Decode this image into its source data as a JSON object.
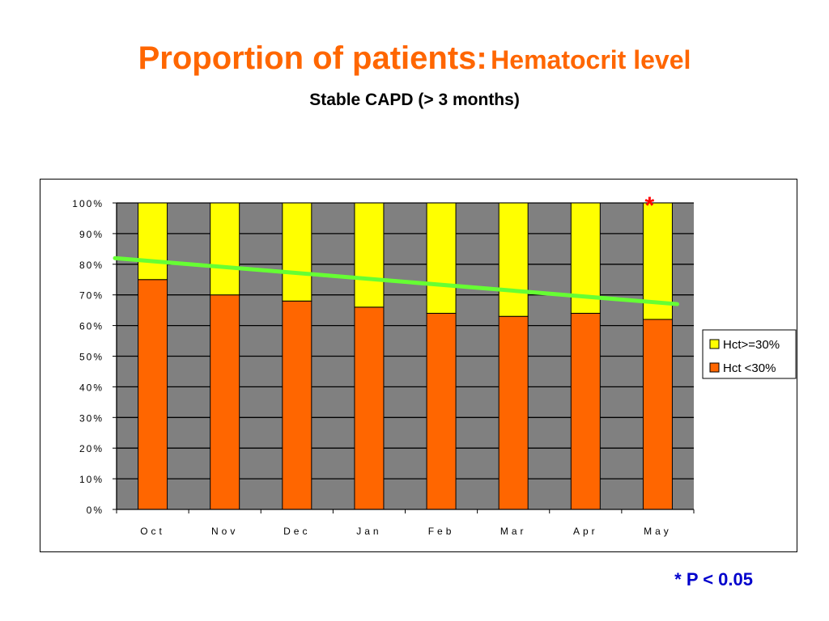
{
  "header": {
    "title_main": "Proportion of patients:",
    "title_sub": "Hematocrit level",
    "subtitle": "Stable CAPD (> 3 months)"
  },
  "footnote": "* P < 0.05",
  "colors": {
    "title": "#ff6600",
    "plot_bg": "#808080",
    "low_hct": "#ff6600",
    "high_hct": "#ffff00",
    "trend": "#66ff33",
    "asterisk": "#ff0000",
    "footnote": "#0000cc"
  },
  "chart_data": {
    "type": "bar",
    "stacked": true,
    "categories": [
      "Oct",
      "Nov",
      "Dec",
      "Jan",
      "Feb",
      "Mar",
      "Apr",
      "May"
    ],
    "series": [
      {
        "name": "Hct <30%",
        "values": [
          75,
          70,
          68,
          66,
          64,
          63,
          64,
          62
        ]
      },
      {
        "name": "Hct>=30%",
        "values": [
          25,
          30,
          32,
          34,
          36,
          37,
          36,
          38
        ]
      }
    ],
    "trendline": {
      "series": "Hct <30%",
      "start": 82,
      "end": 67
    },
    "ylim": [
      0,
      100
    ],
    "yticks": [
      "0%",
      "10%",
      "20%",
      "30%",
      "40%",
      "50%",
      "60%",
      "70%",
      "80%",
      "90%",
      "100%"
    ],
    "grid": true,
    "legend": "right",
    "annotation": {
      "text": "*",
      "category": "May"
    }
  }
}
